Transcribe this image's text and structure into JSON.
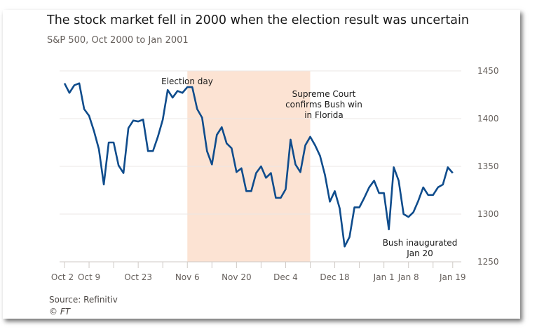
{
  "title": "The stock market fell in 2000 when the election result was uncertain",
  "subtitle": "S&P 500, Oct 2000 to Jan 2001",
  "source": "Source: Refinitiv",
  "copyright": "© FT",
  "chart_data": {
    "type": "line",
    "title": "The stock market fell in 2000 when the election result was uncertain",
    "subtitle": "S&P 500, Oct 2000 to Jan 2001",
    "ylim": [
      1250,
      1450
    ],
    "y_ticks": [
      1250,
      1300,
      1350,
      1400,
      1450
    ],
    "y_axis_side": "right",
    "grid": true,
    "x_tick_labels": [
      "Oct 2",
      "Oct 9",
      "Oct 23",
      "Nov 6",
      "Nov 20",
      "Dec 4",
      "Dec 18",
      "Jan 1",
      "Jan 8",
      "Jan 19"
    ],
    "x": [
      "Oct 2",
      "Oct 3",
      "Oct 4",
      "Oct 5",
      "Oct 6",
      "Oct 9",
      "Oct 10",
      "Oct 11",
      "Oct 12",
      "Oct 13",
      "Oct 16",
      "Oct 17",
      "Oct 18",
      "Oct 19",
      "Oct 20",
      "Oct 23",
      "Oct 24",
      "Oct 25",
      "Oct 26",
      "Oct 27",
      "Oct 30",
      "Oct 31",
      "Nov 1",
      "Nov 2",
      "Nov 3",
      "Nov 6",
      "Nov 7",
      "Nov 8",
      "Nov 9",
      "Nov 10",
      "Nov 13",
      "Nov 14",
      "Nov 15",
      "Nov 16",
      "Nov 17",
      "Nov 20",
      "Nov 21",
      "Nov 22",
      "Nov 23",
      "Nov 24",
      "Nov 27",
      "Nov 28",
      "Nov 29",
      "Nov 30",
      "Dec 1",
      "Dec 4",
      "Dec 5",
      "Dec 6",
      "Dec 7",
      "Dec 8",
      "Dec 11",
      "Dec 12",
      "Dec 13",
      "Dec 14",
      "Dec 15",
      "Dec 18",
      "Dec 19",
      "Dec 20",
      "Dec 21",
      "Dec 22",
      "Dec 25",
      "Dec 26",
      "Dec 27",
      "Dec 28",
      "Dec 29",
      "Jan 1",
      "Jan 2",
      "Jan 3",
      "Jan 4",
      "Jan 5",
      "Jan 8",
      "Jan 9",
      "Jan 10",
      "Jan 11",
      "Jan 12",
      "Jan 15",
      "Jan 16",
      "Jan 17",
      "Jan 18",
      "Jan 19"
    ],
    "series": [
      {
        "color": "#0f4c8c",
        "values": [
          1437,
          1427,
          1435,
          1437,
          1410,
          1403,
          1387,
          1368,
          1331,
          1375,
          1375,
          1351,
          1343,
          1390,
          1398,
          1397,
          1399,
          1366,
          1366,
          1381,
          1399,
          1430,
          1422,
          1429,
          1427,
          1433,
          1433,
          1410,
          1401,
          1366,
          1352,
          1383,
          1391,
          1374,
          1369,
          1344,
          1348,
          1324,
          1324,
          1343,
          1350,
          1338,
          1343,
          1317,
          1317,
          1326,
          1378,
          1352,
          1344,
          1372,
          1381,
          1372,
          1361,
          1341,
          1313,
          1324,
          1306,
          1266,
          1276,
          1307,
          1307,
          1317,
          1328,
          1335,
          1322,
          1322,
          1284,
          1349,
          1335,
          1300,
          1297,
          1302,
          1314,
          1328,
          1320,
          1320,
          1328,
          1331,
          1349,
          1343
        ]
      }
    ],
    "shaded_range": {
      "from": "Nov 6",
      "to": "Dec 11",
      "color": "#fce3d3"
    },
    "annotations": [
      {
        "lines": [
          "Election day"
        ]
      },
      {
        "lines": [
          "Supreme Court",
          "confirms Bush win",
          "in Florida"
        ]
      },
      {
        "lines": [
          "Bush inaugurated",
          "Jan 20"
        ]
      }
    ]
  }
}
